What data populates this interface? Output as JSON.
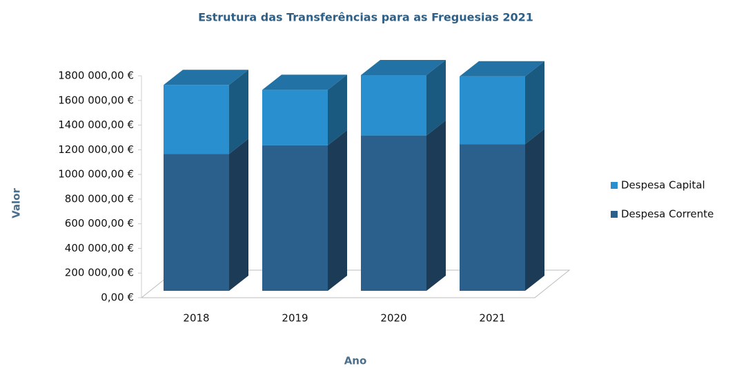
{
  "chart_data": {
    "type": "bar3d_stacked",
    "title": "Estrutura das Transferências para as Freguesias 2021",
    "x_label": "Ano",
    "y_label": "Valor",
    "categories": [
      "2018",
      "2019",
      "2020",
      "2021"
    ],
    "series": [
      {
        "name": "Despesa Corrente",
        "color": "#2b5f8c",
        "values": [
          1110000,
          1180000,
          1260000,
          1190000
        ]
      },
      {
        "name": "Despesa Capital",
        "color": "#2a8fce",
        "values": [
          560000,
          450000,
          490000,
          550000
        ]
      }
    ],
    "ylim": [
      0,
      1800000
    ],
    "yticks": [
      {
        "value": 0,
        "label": "0,00 €"
      },
      {
        "value": 200000,
        "label": "200 000,00 €"
      },
      {
        "value": 400000,
        "label": "400 000,00 €"
      },
      {
        "value": 600000,
        "label": "600 000,00 €"
      },
      {
        "value": 800000,
        "label": "800 000,00 €"
      },
      {
        "value": 1000000,
        "label": "1000 000,00 €"
      },
      {
        "value": 1200000,
        "label": "1200 000,00 €"
      },
      {
        "value": 1400000,
        "label": "1400 000,00 €"
      },
      {
        "value": 1600000,
        "label": "1600 000,00 €"
      },
      {
        "value": 1800000,
        "label": "1800 000,00 €"
      }
    ],
    "legend": "right"
  }
}
